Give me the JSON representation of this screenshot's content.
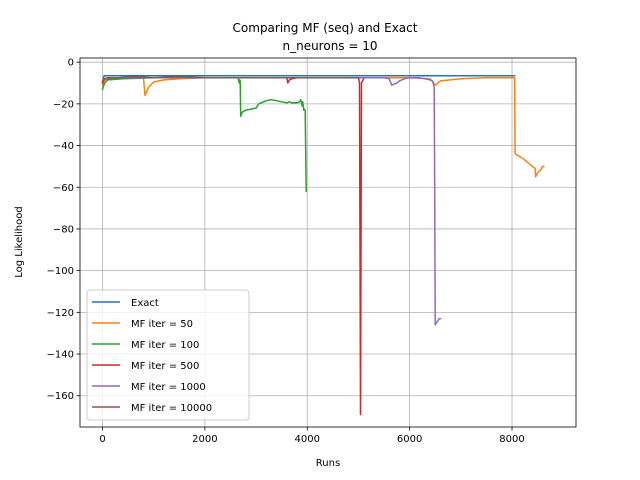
{
  "chart_data": {
    "type": "line",
    "title": "Comparing MF (seq) and Exact",
    "subtitle": "n_neurons = 10",
    "xlabel": "Runs",
    "ylabel": "Log Likelihood",
    "xlim": [
      -440,
      9250
    ],
    "ylim": [
      -175,
      2
    ],
    "xticks": [
      0,
      2000,
      4000,
      6000,
      8000
    ],
    "yticks": [
      0,
      -20,
      -40,
      -60,
      -80,
      -100,
      -120,
      -140,
      -160
    ],
    "grid": true,
    "legend_position": "lower-left",
    "series": [
      {
        "name": "Exact",
        "color": "#1f77b4",
        "x": [
          0,
          30,
          8050
        ],
        "y": [
          -10,
          -6.5,
          -6.5
        ]
      },
      {
        "name": "MF iter = 50",
        "color": "#ff7f0e",
        "x": [
          0,
          40,
          200,
          500,
          800,
          830,
          900,
          1000,
          1200,
          1500,
          2000,
          3000,
          4000,
          5000,
          6000,
          6400,
          6500,
          6600,
          7000,
          7500,
          8000,
          8050,
          8060,
          8200,
          8300,
          8400,
          8450,
          8460,
          8500,
          8550,
          8600,
          8620
        ],
        "y": [
          -11,
          -8.5,
          -8,
          -7.5,
          -7.5,
          -16,
          -12,
          -9.5,
          -8.5,
          -8,
          -7.5,
          -7.5,
          -7.5,
          -7.5,
          -7.5,
          -8,
          -11,
          -9,
          -8,
          -7.5,
          -7.5,
          -7.5,
          -44,
          -46,
          -48,
          -50,
          -51,
          -55,
          -53,
          -52,
          -50,
          -50
        ]
      },
      {
        "name": "MF iter = 100",
        "color": "#2ca02c",
        "x": [
          0,
          40,
          100,
          400,
          1000,
          1500,
          2000,
          2500,
          2650,
          2670,
          2680,
          2690,
          2700,
          2710,
          2730,
          2800,
          2900,
          3000,
          3050,
          3100,
          3150,
          3200,
          3300,
          3400,
          3500,
          3600,
          3650,
          3700,
          3800,
          3850,
          3870,
          3900,
          3910,
          3930,
          3940,
          3960,
          3980
        ],
        "y": [
          -13,
          -10,
          -8.5,
          -8,
          -7.5,
          -7.5,
          -7.5,
          -7.5,
          -7.5,
          -10,
          -8.5,
          -9,
          -26,
          -25,
          -24,
          -23,
          -22.5,
          -22,
          -20,
          -19.5,
          -19,
          -18.5,
          -18,
          -18.5,
          -19,
          -19.5,
          -19,
          -19.5,
          -19.5,
          -19,
          -18,
          -21,
          -19,
          -23,
          -22.5,
          -23,
          -62
        ]
      },
      {
        "name": "MF iter = 500",
        "color": "#d62728",
        "x": [
          0,
          40,
          200,
          500,
          1000,
          2000,
          3000,
          3500,
          3600,
          3620,
          3650,
          3700,
          3800,
          4000,
          4500,
          5000,
          5020,
          5040,
          5060,
          5080,
          5100
        ],
        "y": [
          -10,
          -8,
          -7.5,
          -7.5,
          -7.5,
          -7.5,
          -7.5,
          -7.5,
          -7.5,
          -10,
          -8.5,
          -8,
          -7.5,
          -7.5,
          -7.5,
          -7.5,
          -10,
          -169,
          -10,
          -9,
          -8
        ]
      },
      {
        "name": "MF iter = 1000",
        "color": "#9467bd",
        "x": [
          0,
          40,
          100,
          500,
          1000,
          2000,
          3000,
          4000,
          5000,
          5500,
          5600,
          5650,
          5700,
          5750,
          5800,
          5900,
          6000,
          6100,
          6200,
          6300,
          6400,
          6450,
          6470,
          6480,
          6490,
          6500,
          6520,
          6550,
          6580,
          6600
        ],
        "y": [
          -9,
          -8,
          -7.5,
          -7.5,
          -7.5,
          -7.5,
          -7.5,
          -7.5,
          -7.5,
          -7.5,
          -8,
          -11,
          -10.5,
          -10,
          -9,
          -8,
          -7.5,
          -7.5,
          -7.5,
          -8,
          -8.5,
          -9,
          -11,
          -12,
          -60,
          -126,
          -125,
          -124,
          -123,
          -123
        ]
      },
      {
        "name": "MF iter = 10000",
        "color": "#8c564b",
        "x": [
          0,
          40,
          100,
          300,
          600,
          1000,
          1500,
          2000,
          3000,
          4000,
          5000
        ],
        "y": [
          -9,
          -8,
          -7.5,
          -7.5,
          -7,
          -7.5,
          -7,
          -7.5,
          -7.5,
          -7.5,
          -7.5
        ]
      }
    ]
  }
}
